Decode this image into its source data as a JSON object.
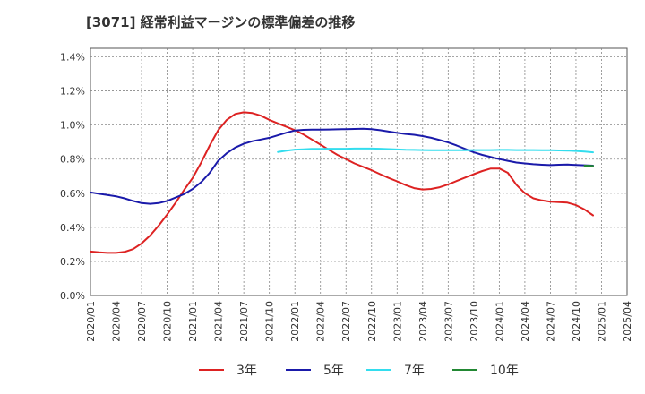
{
  "title": "[3071]  経常利益マージンの標準偏差の推移",
  "chart_data": {
    "type": "line",
    "ylim": [
      0,
      0.0145
    ],
    "xlim": [
      "2020/01",
      "2025/04"
    ],
    "y_ticks": [
      "0.0%",
      "0.2%",
      "0.4%",
      "0.6%",
      "0.8%",
      "1.0%",
      "1.2%",
      "1.4%"
    ],
    "y_tick_values": [
      0,
      0.002,
      0.004,
      0.006,
      0.008,
      0.01,
      0.012,
      0.014
    ],
    "x_ticks": [
      "2020/01",
      "2020/04",
      "2020/07",
      "2020/10",
      "2021/01",
      "2021/04",
      "2021/07",
      "2021/10",
      "2022/01",
      "2022/04",
      "2022/07",
      "2022/10",
      "2023/01",
      "2023/04",
      "2023/07",
      "2023/10",
      "2024/01",
      "2024/04",
      "2024/07",
      "2024/10",
      "2025/01",
      "2025/04"
    ],
    "grid": true,
    "legend_position": "bottom",
    "series": [
      {
        "name": "3年",
        "color": "#dd2222",
        "points": [
          [
            "2020/01",
            0.00258
          ],
          [
            "2020/02",
            0.00253
          ],
          [
            "2020/03",
            0.0025
          ],
          [
            "2020/04",
            0.0025
          ],
          [
            "2020/05",
            0.00256
          ],
          [
            "2020/06",
            0.00272
          ],
          [
            "2020/07",
            0.00305
          ],
          [
            "2020/08",
            0.00352
          ],
          [
            "2020/09",
            0.0041
          ],
          [
            "2020/10",
            0.00475
          ],
          [
            "2020/11",
            0.00545
          ],
          [
            "2020/12",
            0.0062
          ],
          [
            "2021/01",
            0.0069
          ],
          [
            "2021/02",
            0.0078
          ],
          [
            "2021/03",
            0.0088
          ],
          [
            "2021/04",
            0.0097
          ],
          [
            "2021/05",
            0.0103
          ],
          [
            "2021/06",
            0.01065
          ],
          [
            "2021/07",
            0.01075
          ],
          [
            "2021/08",
            0.0107
          ],
          [
            "2021/09",
            0.01055
          ],
          [
            "2021/10",
            0.0103
          ],
          [
            "2021/11",
            0.0101
          ],
          [
            "2021/12",
            0.0099
          ],
          [
            "2022/01",
            0.0097
          ],
          [
            "2022/02",
            0.00945
          ],
          [
            "2022/03",
            0.00915
          ],
          [
            "2022/04",
            0.00885
          ],
          [
            "2022/05",
            0.00855
          ],
          [
            "2022/06",
            0.00825
          ],
          [
            "2022/07",
            0.008
          ],
          [
            "2022/08",
            0.00775
          ],
          [
            "2022/09",
            0.00755
          ],
          [
            "2022/10",
            0.00735
          ],
          [
            "2022/11",
            0.00712
          ],
          [
            "2022/12",
            0.0069
          ],
          [
            "2023/01",
            0.0067
          ],
          [
            "2023/02",
            0.00648
          ],
          [
            "2023/03",
            0.0063
          ],
          [
            "2023/04",
            0.00622
          ],
          [
            "2023/05",
            0.00625
          ],
          [
            "2023/06",
            0.00635
          ],
          [
            "2023/07",
            0.00652
          ],
          [
            "2023/08",
            0.00672
          ],
          [
            "2023/09",
            0.00692
          ],
          [
            "2023/10",
            0.00712
          ],
          [
            "2023/11",
            0.0073
          ],
          [
            "2023/12",
            0.00745
          ],
          [
            "2024/01",
            0.00745
          ],
          [
            "2024/02",
            0.0072
          ],
          [
            "2024/03",
            0.0065
          ],
          [
            "2024/04",
            0.006
          ],
          [
            "2024/05",
            0.0057
          ],
          [
            "2024/06",
            0.00558
          ],
          [
            "2024/07",
            0.0055
          ],
          [
            "2024/08",
            0.00548
          ],
          [
            "2024/09",
            0.00545
          ],
          [
            "2024/10",
            0.0053
          ],
          [
            "2024/11",
            0.00505
          ],
          [
            "2024/12",
            0.0047
          ]
        ]
      },
      {
        "name": "5年",
        "color": "#1a1aaa",
        "points": [
          [
            "2020/01",
            0.00605
          ],
          [
            "2020/02",
            0.00597
          ],
          [
            "2020/03",
            0.0059
          ],
          [
            "2020/04",
            0.00582
          ],
          [
            "2020/05",
            0.0057
          ],
          [
            "2020/06",
            0.00555
          ],
          [
            "2020/07",
            0.00542
          ],
          [
            "2020/08",
            0.00538
          ],
          [
            "2020/09",
            0.00542
          ],
          [
            "2020/10",
            0.00555
          ],
          [
            "2020/11",
            0.00575
          ],
          [
            "2020/12",
            0.00595
          ],
          [
            "2021/01",
            0.00625
          ],
          [
            "2021/02",
            0.00665
          ],
          [
            "2021/03",
            0.0072
          ],
          [
            "2021/04",
            0.0079
          ],
          [
            "2021/05",
            0.00835
          ],
          [
            "2021/06",
            0.00868
          ],
          [
            "2021/07",
            0.0089
          ],
          [
            "2021/08",
            0.00905
          ],
          [
            "2021/09",
            0.00915
          ],
          [
            "2021/10",
            0.00925
          ],
          [
            "2021/11",
            0.0094
          ],
          [
            "2021/12",
            0.00955
          ],
          [
            "2022/01",
            0.00968
          ],
          [
            "2022/02",
            0.00972
          ],
          [
            "2022/03",
            0.00973
          ],
          [
            "2022/04",
            0.00973
          ],
          [
            "2022/05",
            0.00974
          ],
          [
            "2022/06",
            0.00975
          ],
          [
            "2022/07",
            0.00976
          ],
          [
            "2022/08",
            0.00977
          ],
          [
            "2022/09",
            0.00978
          ],
          [
            "2022/10",
            0.00976
          ],
          [
            "2022/11",
            0.0097
          ],
          [
            "2022/12",
            0.00962
          ],
          [
            "2023/01",
            0.00954
          ],
          [
            "2023/02",
            0.00948
          ],
          [
            "2023/03",
            0.00943
          ],
          [
            "2023/04",
            0.00935
          ],
          [
            "2023/05",
            0.00925
          ],
          [
            "2023/06",
            0.00912
          ],
          [
            "2023/07",
            0.00898
          ],
          [
            "2023/08",
            0.0088
          ],
          [
            "2023/09",
            0.0086
          ],
          [
            "2023/10",
            0.0084
          ],
          [
            "2023/11",
            0.00825
          ],
          [
            "2023/12",
            0.00812
          ],
          [
            "2024/01",
            0.008
          ],
          [
            "2024/02",
            0.0079
          ],
          [
            "2024/03",
            0.0078
          ],
          [
            "2024/04",
            0.00775
          ],
          [
            "2024/05",
            0.0077
          ],
          [
            "2024/06",
            0.00767
          ],
          [
            "2024/07",
            0.00765
          ],
          [
            "2024/08",
            0.00767
          ],
          [
            "2024/09",
            0.00768
          ],
          [
            "2024/10",
            0.00766
          ],
          [
            "2024/11",
            0.00764
          ],
          [
            "2024/12",
            0.00762
          ]
        ]
      },
      {
        "name": "7年",
        "color": "#33ddee",
        "points": [
          [
            "2021/11",
            0.00842
          ],
          [
            "2021/12",
            0.0085
          ],
          [
            "2022/01",
            0.00856
          ],
          [
            "2022/02",
            0.00858
          ],
          [
            "2022/03",
            0.0086
          ],
          [
            "2022/04",
            0.0086
          ],
          [
            "2022/05",
            0.00861
          ],
          [
            "2022/06",
            0.00861
          ],
          [
            "2022/07",
            0.00861
          ],
          [
            "2022/08",
            0.00862
          ],
          [
            "2022/09",
            0.00862
          ],
          [
            "2022/10",
            0.00862
          ],
          [
            "2022/11",
            0.00861
          ],
          [
            "2022/12",
            0.00859
          ],
          [
            "2023/01",
            0.00857
          ],
          [
            "2023/02",
            0.00855
          ],
          [
            "2023/03",
            0.00854
          ],
          [
            "2023/04",
            0.00853
          ],
          [
            "2023/05",
            0.00852
          ],
          [
            "2023/06",
            0.00852
          ],
          [
            "2023/07",
            0.00852
          ],
          [
            "2023/08",
            0.00852
          ],
          [
            "2023/09",
            0.00852
          ],
          [
            "2023/10",
            0.00853
          ],
          [
            "2023/11",
            0.00853
          ],
          [
            "2023/12",
            0.00853
          ],
          [
            "2024/01",
            0.00854
          ],
          [
            "2024/02",
            0.00854
          ],
          [
            "2024/03",
            0.00853
          ],
          [
            "2024/04",
            0.00853
          ],
          [
            "2024/05",
            0.00853
          ],
          [
            "2024/06",
            0.00852
          ],
          [
            "2024/07",
            0.00852
          ],
          [
            "2024/08",
            0.00851
          ],
          [
            "2024/09",
            0.0085
          ],
          [
            "2024/10",
            0.00848
          ],
          [
            "2024/11",
            0.00845
          ],
          [
            "2024/12",
            0.0084
          ]
        ]
      },
      {
        "name": "10年",
        "color": "#228833",
        "points": [
          [
            "2024/11",
            0.00762
          ],
          [
            "2024/12",
            0.0076
          ]
        ]
      }
    ]
  }
}
